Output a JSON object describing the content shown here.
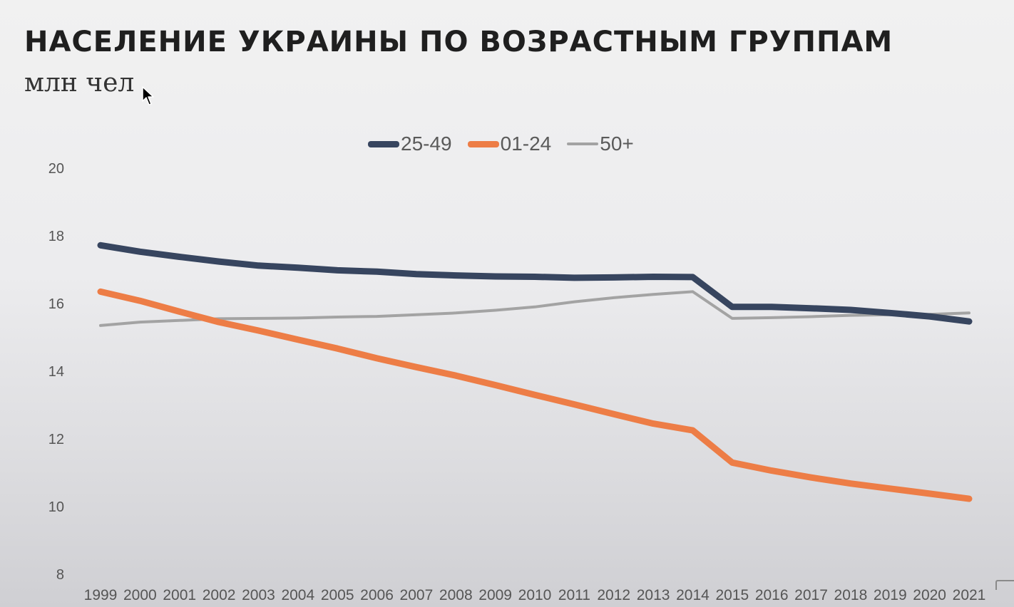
{
  "chart_data": {
    "type": "line",
    "title": "НАСЕЛЕНИЕ УКРАИНЫ ПО ВОЗРАСТНЫМ ГРУППАМ",
    "subtitle": "млн чел",
    "xlabel": "",
    "ylabel": "",
    "x": [
      "1999",
      "2000",
      "2001",
      "2002",
      "2003",
      "2004",
      "2005",
      "2006",
      "2007",
      "2008",
      "2009",
      "2010",
      "2011",
      "2012",
      "2013",
      "2014",
      "2015",
      "2016",
      "2017",
      "2018",
      "2019",
      "2020",
      "2021"
    ],
    "ylim": [
      8,
      20
    ],
    "yticks": [
      8,
      10,
      12,
      14,
      16,
      18,
      20
    ],
    "grid": false,
    "legend_position": "top-center",
    "series": [
      {
        "name": "25-49",
        "color": "#37455f",
        "values": [
          17.72,
          17.53,
          17.38,
          17.24,
          17.12,
          17.06,
          16.98,
          16.94,
          16.87,
          16.83,
          16.8,
          16.79,
          16.76,
          16.77,
          16.79,
          16.78,
          15.9,
          15.9,
          15.86,
          15.81,
          15.72,
          15.62,
          15.47
        ]
      },
      {
        "name": "01-24",
        "color": "#ed7d46",
        "values": [
          16.35,
          16.08,
          15.76,
          15.45,
          15.2,
          14.93,
          14.67,
          14.38,
          14.12,
          13.87,
          13.59,
          13.3,
          13.02,
          12.73,
          12.45,
          12.25,
          11.3,
          11.06,
          10.86,
          10.68,
          10.53,
          10.38,
          10.23
        ]
      },
      {
        "name": "50+",
        "color": "#a3a3a3",
        "values": [
          15.35,
          15.45,
          15.5,
          15.55,
          15.56,
          15.57,
          15.6,
          15.62,
          15.67,
          15.72,
          15.8,
          15.9,
          16.05,
          16.17,
          16.27,
          16.35,
          15.56,
          15.58,
          15.61,
          15.65,
          15.67,
          15.68,
          15.72
        ]
      }
    ]
  },
  "icons": {
    "cursor": "mouse-pointer-icon"
  }
}
